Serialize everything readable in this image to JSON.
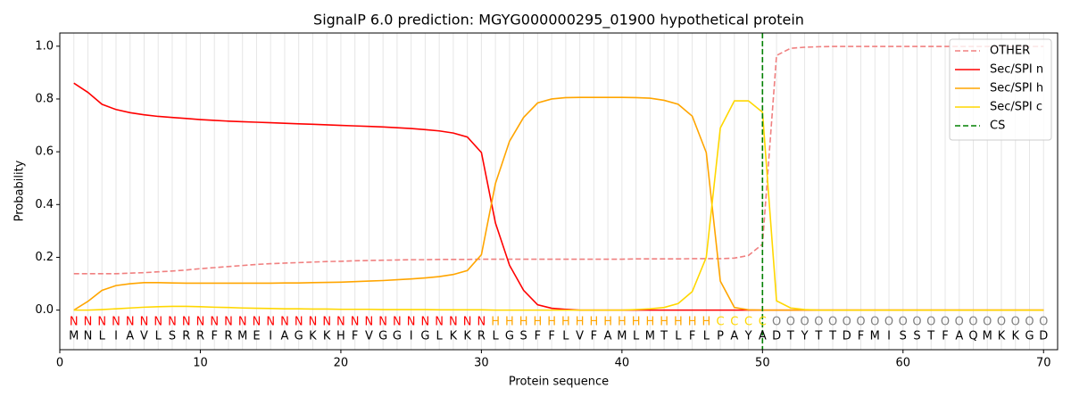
{
  "chart_data": {
    "type": "line",
    "title": "SignalP 6.0 prediction: MGYG000000295_01900 hypothetical protein",
    "xlabel": "Protein sequence",
    "ylabel": "Probability",
    "xlim": [
      0,
      71
    ],
    "ylim": [
      -0.15,
      1.05
    ],
    "xticks": [
      0,
      10,
      20,
      30,
      40,
      50,
      60,
      70
    ],
    "yticks": [
      {
        "value": 0,
        "label": "0.0"
      },
      {
        "value": 0.2,
        "label": "0.2"
      },
      {
        "value": 0.4,
        "label": "0.4"
      },
      {
        "value": 0.6,
        "label": "0.6"
      },
      {
        "value": 0.8,
        "label": "0.8"
      },
      {
        "value": 1.0,
        "label": "1.0"
      }
    ],
    "legend": "upper right",
    "x": [
      1,
      2,
      3,
      4,
      5,
      6,
      7,
      8,
      9,
      10,
      11,
      12,
      13,
      14,
      15,
      16,
      17,
      18,
      19,
      20,
      21,
      22,
      23,
      24,
      25,
      26,
      27,
      28,
      29,
      30,
      31,
      32,
      33,
      34,
      35,
      36,
      37,
      38,
      39,
      40,
      41,
      42,
      43,
      44,
      45,
      46,
      47,
      48,
      49,
      50,
      51,
      52,
      53,
      54,
      55,
      56,
      57,
      58,
      59,
      60,
      61,
      62,
      63,
      64,
      65,
      66,
      67,
      68,
      69,
      70
    ],
    "series": [
      {
        "name": "OTHER",
        "color": "#f08080",
        "dashed": true,
        "values": [
          0.138,
          0.138,
          0.138,
          0.138,
          0.14,
          0.142,
          0.145,
          0.148,
          0.152,
          0.157,
          0.161,
          0.165,
          0.169,
          0.173,
          0.176,
          0.178,
          0.18,
          0.182,
          0.184,
          0.185,
          0.187,
          0.188,
          0.189,
          0.19,
          0.191,
          0.191,
          0.192,
          0.192,
          0.192,
          0.193,
          0.193,
          0.193,
          0.193,
          0.193,
          0.193,
          0.193,
          0.193,
          0.193,
          0.193,
          0.193,
          0.194,
          0.194,
          0.194,
          0.194,
          0.195,
          0.195,
          0.195,
          0.197,
          0.207,
          0.25,
          0.965,
          0.992,
          0.996,
          0.998,
          0.999,
          0.999,
          0.999,
          0.999,
          0.999,
          0.999,
          0.999,
          0.999,
          0.999,
          0.999,
          0.999,
          0.999,
          0.999,
          0.999,
          0.999,
          0.999
        ]
      },
      {
        "name": "Sec/SPI n",
        "color": "#ff0000",
        "values": [
          0.86,
          0.825,
          0.78,
          0.76,
          0.748,
          0.74,
          0.734,
          0.73,
          0.726,
          0.722,
          0.719,
          0.716,
          0.714,
          0.712,
          0.71,
          0.708,
          0.706,
          0.704,
          0.702,
          0.7,
          0.698,
          0.696,
          0.694,
          0.691,
          0.688,
          0.684,
          0.679,
          0.671,
          0.656,
          0.597,
          0.33,
          0.17,
          0.075,
          0.02,
          0.007,
          0.003,
          0,
          0,
          0,
          0,
          0,
          0,
          0,
          0,
          0,
          0,
          0,
          0,
          0,
          0,
          0,
          0,
          0,
          0,
          0,
          0,
          0,
          0,
          0,
          0,
          0,
          0,
          0,
          0,
          0,
          0,
          0,
          0,
          0,
          0
        ]
      },
      {
        "name": "Sec/SPI h",
        "color": "#ffa500",
        "values": [
          0,
          0.033,
          0.075,
          0.093,
          0.1,
          0.104,
          0.104,
          0.103,
          0.102,
          0.102,
          0.102,
          0.102,
          0.102,
          0.102,
          0.102,
          0.103,
          0.103,
          0.104,
          0.105,
          0.106,
          0.108,
          0.11,
          0.112,
          0.115,
          0.118,
          0.122,
          0.127,
          0.135,
          0.15,
          0.21,
          0.48,
          0.64,
          0.73,
          0.785,
          0.8,
          0.805,
          0.806,
          0.806,
          0.806,
          0.806,
          0.805,
          0.803,
          0.795,
          0.78,
          0.735,
          0.597,
          0.11,
          0.01,
          0.001,
          0,
          0,
          0,
          0,
          0,
          0,
          0,
          0,
          0,
          0,
          0,
          0,
          0,
          0,
          0,
          0,
          0,
          0,
          0,
          0,
          0
        ]
      },
      {
        "name": "Sec/SPI c",
        "color": "#ffd700",
        "values": [
          0,
          0,
          0.002,
          0.005,
          0.008,
          0.011,
          0.013,
          0.014,
          0.014,
          0.013,
          0.011,
          0.01,
          0.008,
          0.007,
          0.006,
          0.005,
          0.005,
          0.004,
          0.004,
          0.003,
          0.003,
          0.003,
          0.002,
          0.002,
          0.002,
          0.002,
          0.001,
          0.001,
          0.001,
          0.001,
          0,
          0,
          0,
          0,
          0,
          0,
          0,
          0,
          0,
          0,
          0.002,
          0.005,
          0.01,
          0.025,
          0.07,
          0.2,
          0.69,
          0.793,
          0.793,
          0.75,
          0.035,
          0.008,
          0.002,
          0,
          0,
          0,
          0,
          0,
          0,
          0,
          0,
          0,
          0,
          0,
          0,
          0,
          0,
          0,
          0,
          0
        ]
      }
    ],
    "cs": {
      "name": "CS",
      "x": 50,
      "color": "#008000"
    },
    "region_colors": {
      "N": "#ff0000",
      "H": "#ffa500",
      "C": "#ffd700",
      "O": "#808080"
    },
    "regions": [
      "N",
      "N",
      "N",
      "N",
      "N",
      "N",
      "N",
      "N",
      "N",
      "N",
      "N",
      "N",
      "N",
      "N",
      "N",
      "N",
      "N",
      "N",
      "N",
      "N",
      "N",
      "N",
      "N",
      "N",
      "N",
      "N",
      "N",
      "N",
      "N",
      "N",
      "H",
      "H",
      "H",
      "H",
      "H",
      "H",
      "H",
      "H",
      "H",
      "H",
      "H",
      "H",
      "H",
      "H",
      "H",
      "H",
      "C",
      "C",
      "C",
      "C",
      "O",
      "O",
      "O",
      "O",
      "O",
      "O",
      "O",
      "O",
      "O",
      "O",
      "O",
      "O",
      "O",
      "O",
      "O",
      "O",
      "O",
      "O",
      "O",
      "O"
    ],
    "residues": [
      "M",
      "N",
      "L",
      "I",
      "A",
      "V",
      "L",
      "S",
      "R",
      "R",
      "F",
      "R",
      "M",
      "E",
      "I",
      "A",
      "G",
      "K",
      "K",
      "H",
      "F",
      "V",
      "G",
      "G",
      "I",
      "G",
      "L",
      "K",
      "K",
      "R",
      "L",
      "G",
      "S",
      "F",
      "F",
      "L",
      "V",
      "F",
      "A",
      "M",
      "L",
      "M",
      "T",
      "L",
      "F",
      "L",
      "P",
      "A",
      "Y",
      "A",
      "D",
      "T",
      "Y",
      "T",
      "T",
      "D",
      "F",
      "M",
      "I",
      "S",
      "S",
      "T",
      "F",
      "A",
      "Q",
      "M",
      "K",
      "K",
      "G",
      "D"
    ]
  }
}
